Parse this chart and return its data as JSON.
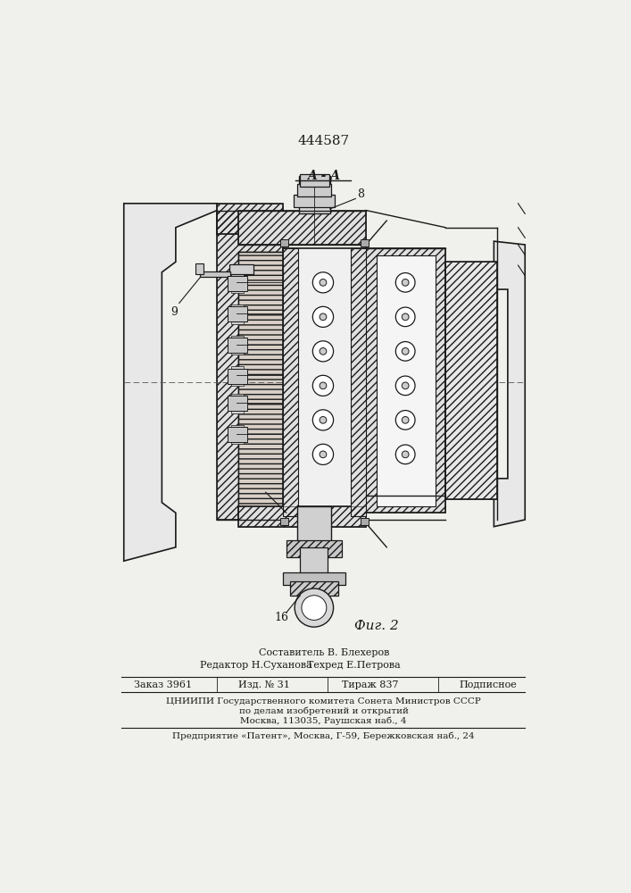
{
  "patent_number": "444587",
  "section_label": "A - A",
  "fig_label": "Фиг. 2",
  "bg_color": "#f0f0ec",
  "line_color": "#1a1a1a",
  "footer": {
    "sostavitel": "Составитель В. Блехеров",
    "redaktor": "Редактор Н.Суханова",
    "tekhred": "Техред Е.Петрова",
    "zakaz": "Заказ 3961",
    "izd": "Изд. № 31",
    "tirazh": "Тираж 837",
    "podpisnoe": "Подписное",
    "tsniini": "ЦНИИПИ Государственного комитета Сонета Министров СССР",
    "po_delam": "по делам изобретений и открытий",
    "moskva": "Москва, 113035, Раушская наб., 4",
    "predpriyatie": "Предприятие «Патент», Москва, Г-59, Бережковская наб., 24"
  }
}
